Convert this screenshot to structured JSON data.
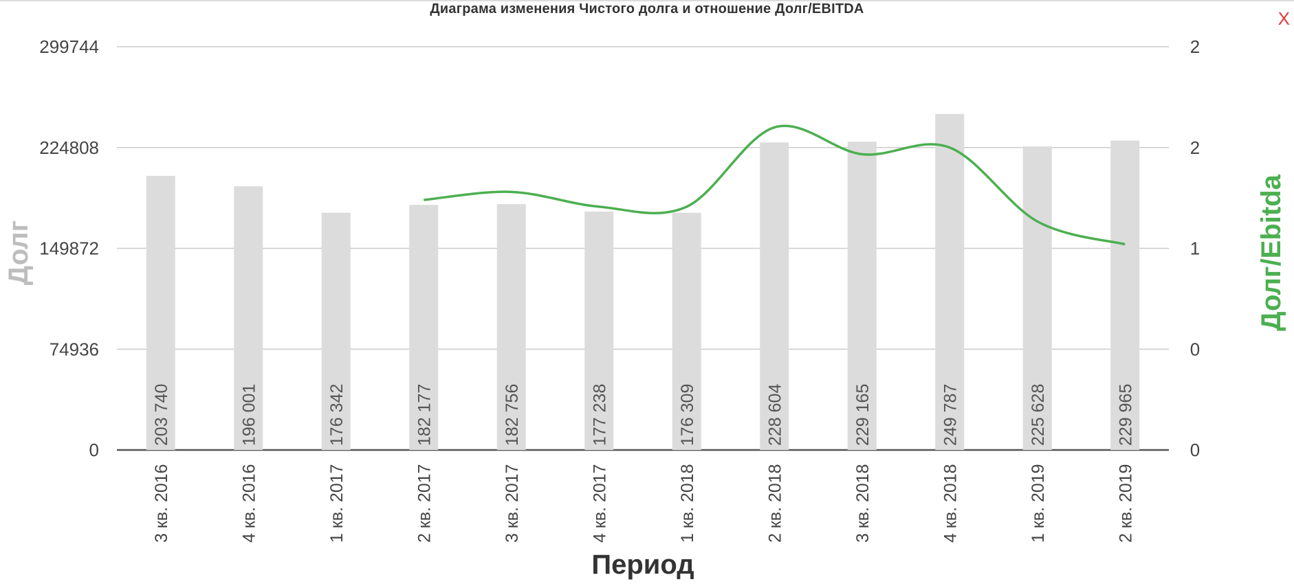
{
  "close_label": "X",
  "chart_data": {
    "type": "bar",
    "title": "Диаграма изменения Чистого долга и отношение Долг/EBITDA",
    "xlabel": "Период",
    "ylabel": "Долг",
    "y2label": "Долг/Ebitda",
    "categories": [
      "3 кв. 2016",
      "4 кв. 2016",
      "1 кв. 2017",
      "2 кв. 2017",
      "3 кв. 2017",
      "4 кв. 2017",
      "1 кв. 2018",
      "2 кв. 2018",
      "3 кв. 2018",
      "4 кв. 2018",
      "1 кв. 2019",
      "2 кв. 2019"
    ],
    "bar_labels": [
      "203 740",
      "196 001",
      "176 342",
      "182 177",
      "182 756",
      "177 238",
      "176 309",
      "228 604",
      "229 165",
      "249 787",
      "225 628",
      "229 965"
    ],
    "series": [
      {
        "type": "bar",
        "axis": "left",
        "color": "#dcdcdc",
        "values": [
          203740,
          196001,
          176342,
          182177,
          182756,
          177238,
          176309,
          228604,
          229165,
          249787,
          225628,
          229965
        ]
      },
      {
        "type": "line",
        "axis": "right",
        "color": "#4caf50",
        "smooth": true,
        "values": [
          null,
          null,
          null,
          1.86,
          1.92,
          1.81,
          1.81,
          2.4,
          2.2,
          2.25,
          1.7,
          1.53
        ]
      }
    ],
    "ylim": [
      0,
      299744
    ],
    "y_ticks": [
      "0",
      "74936",
      "149872",
      "224808",
      "299744"
    ],
    "y2lim": [
      0,
      3
    ],
    "y2_ticks": [
      "0",
      "0",
      "1",
      "2",
      "2"
    ],
    "grid": true,
    "legend": "none"
  }
}
